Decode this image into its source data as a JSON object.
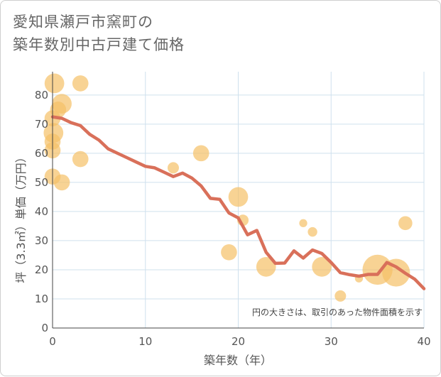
{
  "title_line1": "愛知県瀬戸市窯町の",
  "title_line2": "築年数別中古戸建て価格",
  "chart_data": {
    "type": "scatter",
    "xlabel": "築年数（年）",
    "ylabel": "坪（3.3㎡）単価（万円）",
    "xlim": [
      0,
      40
    ],
    "ylim": [
      0,
      88
    ],
    "xticks": [
      "0",
      "10",
      "20",
      "30",
      "40"
    ],
    "yticks": [
      "0",
      "10",
      "20",
      "30",
      "40",
      "50",
      "60",
      "70",
      "80"
    ],
    "note": "円の大きさは、取引のあった物件面積を示す",
    "colors": {
      "bubble": "#f5c167",
      "line": "#d9705a",
      "grid": "#cfe0ee"
    },
    "bubbles": [
      {
        "x": 0.2,
        "y": 84,
        "s": 3
      },
      {
        "x": 0,
        "y": 72,
        "s": 2
      },
      {
        "x": 0.1,
        "y": 67,
        "s": 3
      },
      {
        "x": 0,
        "y": 64,
        "s": 2
      },
      {
        "x": 0,
        "y": 61,
        "s": 2
      },
      {
        "x": 0,
        "y": 52,
        "s": 2
      },
      {
        "x": 0.6,
        "y": 75,
        "s": 2
      },
      {
        "x": 1,
        "y": 77,
        "s": 3
      },
      {
        "x": 1,
        "y": 50,
        "s": 2
      },
      {
        "x": 3,
        "y": 84,
        "s": 2
      },
      {
        "x": 3,
        "y": 58,
        "s": 2
      },
      {
        "x": 13,
        "y": 55,
        "s": 1
      },
      {
        "x": 16,
        "y": 60,
        "s": 2
      },
      {
        "x": 20,
        "y": 45,
        "s": 3
      },
      {
        "x": 20.5,
        "y": 37,
        "s": 1
      },
      {
        "x": 19,
        "y": 26,
        "s": 2
      },
      {
        "x": 23,
        "y": 21,
        "s": 3
      },
      {
        "x": 27,
        "y": 36,
        "s": 0.5
      },
      {
        "x": 28,
        "y": 33,
        "s": 0.7
      },
      {
        "x": 29,
        "y": 21,
        "s": 3
      },
      {
        "x": 31,
        "y": 11,
        "s": 1
      },
      {
        "x": 33,
        "y": 17,
        "s": 0.5
      },
      {
        "x": 35,
        "y": 20,
        "s": 7
      },
      {
        "x": 37,
        "y": 19,
        "s": 6
      },
      {
        "x": 38,
        "y": 36,
        "s": 1.5
      }
    ],
    "trend": {
      "x": [
        0,
        1,
        2,
        3,
        4,
        5,
        6,
        7,
        8,
        9,
        10,
        11,
        12,
        13,
        14,
        15,
        16,
        17,
        18,
        19,
        20,
        21,
        22,
        23,
        24,
        25,
        26,
        27,
        28,
        29,
        30,
        31,
        32,
        33,
        34,
        35,
        36,
        37,
        38,
        39,
        40
      ],
      "y": [
        72.5,
        72,
        70.5,
        69.5,
        66.5,
        64.5,
        61.5,
        60,
        58.5,
        57,
        55.5,
        55,
        53.5,
        52,
        53.2,
        51.5,
        48.8,
        44.5,
        44.2,
        39.5,
        37.8,
        32,
        33.5,
        26,
        22.2,
        22.3,
        26.5,
        24,
        26.8,
        25.6,
        22.5,
        19,
        18.3,
        17.8,
        18.4,
        18.4,
        22.5,
        21,
        18.8,
        16.8,
        13.5
      ]
    }
  }
}
